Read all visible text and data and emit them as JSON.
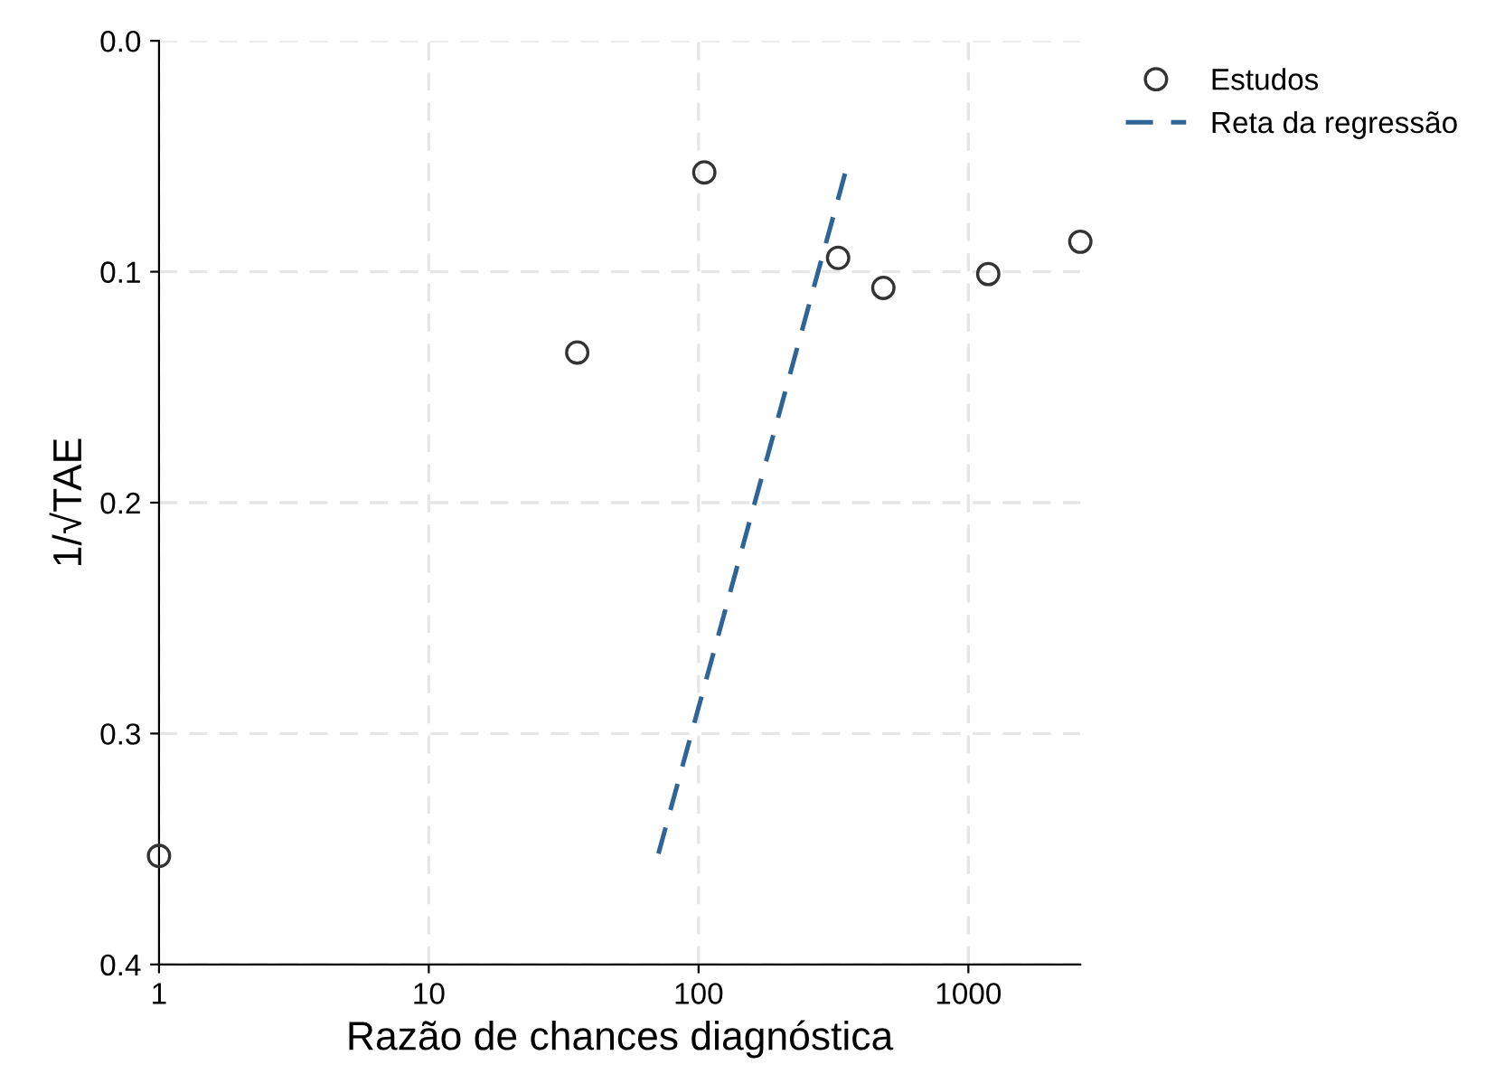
{
  "chart_data": {
    "type": "scatter",
    "xlabel": "Razão de chances diagnóstica",
    "ylabel": "1/√TAE",
    "log": "x",
    "xlim": [
      1,
      2600
    ],
    "xticks": [
      1,
      10,
      100,
      1000
    ],
    "ylim": [
      0.4,
      0.0
    ],
    "yticks": [
      {
        "value": 0.0,
        "label": "0.0"
      },
      0.1,
      0.2,
      0.3,
      {
        "value": 0.4,
        "label": "0.4"
      }
    ],
    "grid": true,
    "legend": "top right",
    "series": [
      {
        "name": "Estudos",
        "marker": "circle",
        "color": "#333333",
        "x": [
          1,
          35.5,
          105,
          329,
          484,
          1185,
          2600
        ],
        "values": [
          0.353,
          0.135,
          0.057,
          0.094,
          0.107,
          0.101,
          0.087
        ]
      },
      {
        "name": "Reta da regressão",
        "type": "line",
        "color": "#2e6596",
        "line_style": "dashed",
        "x": [
          71,
          350
        ],
        "values": [
          0.352,
          0.057
        ]
      }
    ]
  }
}
